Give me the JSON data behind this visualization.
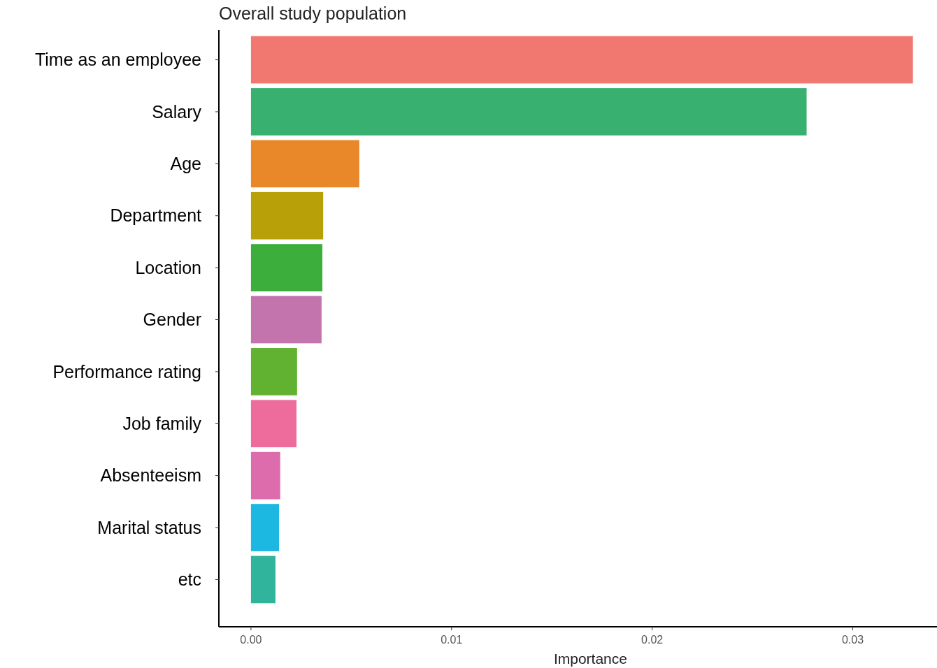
{
  "chart_data": {
    "type": "bar",
    "orientation": "horizontal",
    "title": "Overall study population",
    "xlabel": "Importance",
    "categories": [
      "Time as an employee",
      "Salary",
      "Age",
      "Department",
      "Location",
      "Gender",
      "Performance rating",
      "Job family",
      "Absenteeism",
      "Marital status",
      "etc"
    ],
    "values": [
      0.033,
      0.0277,
      0.0054,
      0.0036,
      0.00356,
      0.00352,
      0.0023,
      0.00227,
      0.00146,
      0.0014,
      0.00122
    ],
    "colors": [
      "#f07870",
      "#38b070",
      "#e88828",
      "#b8a008",
      "#3cae3c",
      "#c474ac",
      "#62b232",
      "#ee6c9c",
      "#dc6cac",
      "#1cb8e2",
      "#30b49c"
    ],
    "xlim": [
      -0.0016,
      0.0342
    ],
    "xticks": [
      {
        "value": 0,
        "label": "0.00"
      },
      {
        "value": 0.01,
        "label": "0.01"
      },
      {
        "value": 0.02,
        "label": "0.02"
      },
      {
        "value": 0.03,
        "label": "0.03"
      }
    ],
    "grid": false
  }
}
